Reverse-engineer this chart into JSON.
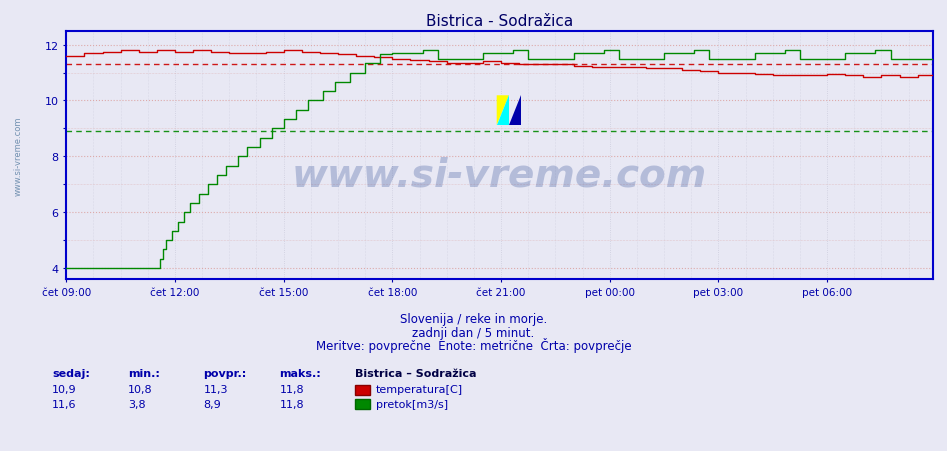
{
  "title": "Bistrica - Sodražica",
  "subtitle1": "Slovenija / reke in morje.",
  "subtitle2": "zadnji dan / 5 minut.",
  "subtitle3": "Meritve: povprečne  Enote: metrične  Črta: povprečje",
  "xlabel_ticks": [
    "čet 09:00",
    "čet 12:00",
    "čet 15:00",
    "čet 18:00",
    "čet 21:00",
    "pet 00:00",
    "pet 03:00",
    "pet 06:00"
  ],
  "ylim": [
    3.6,
    12.5
  ],
  "yticks": [
    4,
    6,
    8,
    10,
    12
  ],
  "bg_color": "#e8e8f0",
  "plot_bg_color": "#e8e8f4",
  "grid_color_h": "#ddaaaa",
  "grid_color_v": "#ccccdd",
  "temp_color": "#cc0000",
  "flow_color": "#008800",
  "temp_avg_line": 11.3,
  "flow_avg_line": 8.9,
  "watermark": "www.si-vreme.com",
  "legend_title": "Bistrica – Sodražica",
  "table_headers": [
    "sedaj:",
    "min.:",
    "povpr.:",
    "maks.:"
  ],
  "temp_row": [
    "10,9",
    "10,8",
    "11,3",
    "11,8"
  ],
  "flow_row": [
    "11,6",
    "3,8",
    "8,9",
    "11,8"
  ],
  "temp_label": "temperatura[C]",
  "flow_label": "pretok[m3/s]",
  "axis_color": "#0000cc",
  "text_color": "#0000aa",
  "title_color": "#000066"
}
